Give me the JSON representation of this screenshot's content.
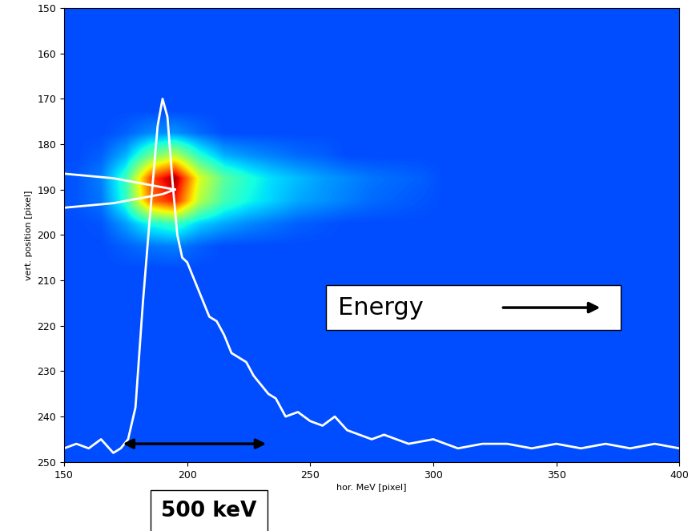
{
  "chart_data": {
    "type": "heatmap",
    "x_label": "hor. MeV [pixel]",
    "y_label": "vert. position [pixel]",
    "xlim": [
      150,
      400
    ],
    "ylim": [
      250,
      150
    ],
    "xticks": [
      150,
      200,
      250,
      300,
      350,
      400
    ],
    "yticks": [
      150,
      160,
      170,
      180,
      190,
      200,
      210,
      220,
      230,
      240,
      250
    ],
    "color_range": [
      0,
      1
    ],
    "cells": [
      [
        0.2,
        0.2,
        0.2,
        0.2,
        0.2,
        0.2,
        0.2,
        0.2,
        0.2,
        0.2,
        0.2,
        0.2,
        0.2,
        0.2,
        0.2,
        0.2,
        0.2,
        0.2,
        0.2,
        0.2,
        0.2,
        0.2,
        0.2,
        0.2,
        0.2
      ],
      [
        0.2,
        0.2,
        0.2,
        0.2,
        0.2,
        0.2,
        0.2,
        0.2,
        0.2,
        0.2,
        0.2,
        0.2,
        0.2,
        0.2,
        0.2,
        0.2,
        0.2,
        0.2,
        0.2,
        0.2,
        0.2,
        0.2,
        0.2,
        0.2,
        0.2
      ],
      [
        0.2,
        0.2,
        0.2,
        0.2,
        0.2,
        0.2,
        0.2,
        0.2,
        0.2,
        0.2,
        0.2,
        0.2,
        0.2,
        0.2,
        0.2,
        0.2,
        0.2,
        0.2,
        0.2,
        0.2,
        0.2,
        0.2,
        0.2,
        0.2,
        0.2
      ],
      [
        0.2,
        0.2,
        0.2,
        0.2,
        0.2,
        0.2,
        0.2,
        0.2,
        0.2,
        0.2,
        0.2,
        0.2,
        0.2,
        0.2,
        0.2,
        0.2,
        0.2,
        0.2,
        0.2,
        0.2,
        0.2,
        0.2,
        0.2,
        0.2,
        0.2
      ],
      [
        0.2,
        0.2,
        0.2,
        0.2,
        0.2,
        0.2,
        0.2,
        0.2,
        0.2,
        0.2,
        0.2,
        0.2,
        0.2,
        0.2,
        0.2,
        0.2,
        0.2,
        0.2,
        0.2,
        0.2,
        0.2,
        0.2,
        0.2,
        0.2,
        0.2
      ],
      [
        0.2,
        0.2,
        0.22,
        0.26,
        0.27,
        0.23,
        0.2,
        0.2,
        0.2,
        0.2,
        0.2,
        0.2,
        0.2,
        0.2,
        0.2,
        0.2,
        0.2,
        0.2,
        0.2,
        0.2,
        0.2,
        0.2,
        0.2,
        0.2,
        0.2
      ],
      [
        0.2,
        0.22,
        0.3,
        0.48,
        0.58,
        0.4,
        0.3,
        0.27,
        0.25,
        0.23,
        0.22,
        0.2,
        0.2,
        0.2,
        0.2,
        0.2,
        0.2,
        0.2,
        0.2,
        0.2,
        0.2,
        0.2,
        0.2,
        0.2,
        0.2
      ],
      [
        0.21,
        0.25,
        0.42,
        0.82,
        0.97,
        0.62,
        0.46,
        0.39,
        0.34,
        0.31,
        0.28,
        0.26,
        0.24,
        0.23,
        0.22,
        0.2,
        0.2,
        0.2,
        0.2,
        0.2,
        0.2,
        0.2,
        0.2,
        0.2,
        0.2
      ],
      [
        0.21,
        0.24,
        0.4,
        0.78,
        0.88,
        0.57,
        0.43,
        0.37,
        0.33,
        0.29,
        0.27,
        0.25,
        0.23,
        0.22,
        0.21,
        0.2,
        0.2,
        0.2,
        0.2,
        0.2,
        0.2,
        0.2,
        0.2,
        0.2,
        0.2
      ],
      [
        0.2,
        0.21,
        0.28,
        0.38,
        0.42,
        0.33,
        0.29,
        0.26,
        0.24,
        0.22,
        0.21,
        0.2,
        0.2,
        0.2,
        0.2,
        0.2,
        0.2,
        0.2,
        0.2,
        0.2,
        0.2,
        0.2,
        0.2,
        0.2,
        0.2
      ],
      [
        0.2,
        0.2,
        0.22,
        0.24,
        0.25,
        0.22,
        0.2,
        0.2,
        0.2,
        0.2,
        0.2,
        0.2,
        0.2,
        0.2,
        0.2,
        0.2,
        0.2,
        0.2,
        0.2,
        0.2,
        0.2,
        0.2,
        0.2,
        0.2,
        0.2
      ],
      [
        0.2,
        0.2,
        0.2,
        0.2,
        0.2,
        0.2,
        0.2,
        0.2,
        0.2,
        0.2,
        0.2,
        0.2,
        0.2,
        0.2,
        0.2,
        0.2,
        0.2,
        0.2,
        0.2,
        0.2,
        0.2,
        0.2,
        0.2,
        0.2,
        0.2
      ],
      [
        0.2,
        0.2,
        0.2,
        0.2,
        0.2,
        0.2,
        0.2,
        0.2,
        0.2,
        0.2,
        0.2,
        0.2,
        0.2,
        0.2,
        0.2,
        0.2,
        0.2,
        0.2,
        0.2,
        0.2,
        0.2,
        0.2,
        0.2,
        0.2,
        0.2
      ],
      [
        0.2,
        0.2,
        0.2,
        0.2,
        0.2,
        0.2,
        0.2,
        0.2,
        0.2,
        0.2,
        0.2,
        0.2,
        0.2,
        0.2,
        0.2,
        0.2,
        0.2,
        0.2,
        0.2,
        0.2,
        0.2,
        0.2,
        0.2,
        0.2,
        0.2
      ],
      [
        0.2,
        0.2,
        0.2,
        0.2,
        0.2,
        0.2,
        0.2,
        0.2,
        0.2,
        0.2,
        0.2,
        0.2,
        0.2,
        0.2,
        0.2,
        0.2,
        0.2,
        0.2,
        0.2,
        0.2,
        0.2,
        0.2,
        0.2,
        0.2,
        0.2
      ],
      [
        0.2,
        0.2,
        0.2,
        0.2,
        0.2,
        0.2,
        0.2,
        0.2,
        0.2,
        0.2,
        0.2,
        0.2,
        0.2,
        0.2,
        0.2,
        0.2,
        0.2,
        0.2,
        0.2,
        0.2,
        0.2,
        0.2,
        0.2,
        0.2,
        0.2
      ],
      [
        0.2,
        0.2,
        0.2,
        0.2,
        0.2,
        0.2,
        0.2,
        0.2,
        0.2,
        0.2,
        0.2,
        0.2,
        0.2,
        0.2,
        0.2,
        0.2,
        0.2,
        0.2,
        0.2,
        0.2,
        0.2,
        0.2,
        0.2,
        0.2,
        0.2
      ],
      [
        0.2,
        0.2,
        0.2,
        0.2,
        0.2,
        0.2,
        0.2,
        0.2,
        0.2,
        0.2,
        0.2,
        0.2,
        0.2,
        0.2,
        0.2,
        0.2,
        0.2,
        0.2,
        0.2,
        0.2,
        0.2,
        0.2,
        0.2,
        0.2,
        0.2
      ],
      [
        0.2,
        0.2,
        0.2,
        0.2,
        0.2,
        0.2,
        0.2,
        0.2,
        0.2,
        0.2,
        0.2,
        0.2,
        0.2,
        0.2,
        0.2,
        0.2,
        0.2,
        0.2,
        0.2,
        0.2,
        0.2,
        0.2,
        0.2,
        0.2,
        0.2
      ],
      [
        0.2,
        0.2,
        0.2,
        0.2,
        0.2,
        0.2,
        0.2,
        0.2,
        0.2,
        0.2,
        0.2,
        0.2,
        0.2,
        0.2,
        0.2,
        0.2,
        0.2,
        0.2,
        0.2,
        0.2,
        0.2,
        0.2,
        0.2,
        0.2,
        0.2
      ]
    ],
    "series": [
      {
        "type": "line",
        "color": "#ffffff",
        "x": [
          150,
          155,
          160,
          165,
          170,
          173,
          176,
          179,
          182,
          185,
          188,
          190,
          192,
          194,
          196,
          198,
          200,
          203,
          206,
          209,
          212,
          215,
          218,
          221,
          224,
          227,
          230,
          233,
          236,
          240,
          245,
          250,
          255,
          260,
          265,
          270,
          275,
          280,
          290,
          300,
          310,
          320,
          330,
          340,
          350,
          360,
          370,
          380,
          390,
          400
        ],
        "values": [
          247,
          246,
          247,
          245,
          248,
          247,
          245,
          238,
          215,
          195,
          176,
          170,
          174,
          188,
          200,
          205,
          206,
          210,
          214,
          218,
          219,
          222,
          226,
          227,
          228,
          231,
          233,
          235,
          236,
          240,
          239,
          241,
          242,
          240,
          243,
          244,
          245,
          244,
          246,
          245,
          247,
          246,
          246,
          247,
          246,
          247,
          246,
          247,
          246,
          247
        ]
      },
      {
        "type": "line",
        "color": "#ffffff",
        "x": [
          150,
          170,
          190,
          195
        ],
        "values": [
          186.5,
          187.5,
          189.5,
          190
        ]
      },
      {
        "type": "line",
        "color": "#ffffff",
        "x": [
          150,
          170,
          190,
          195
        ],
        "values": [
          194,
          193,
          191,
          190
        ]
      }
    ],
    "annotations": [
      "Energy",
      "500 keV"
    ]
  }
}
